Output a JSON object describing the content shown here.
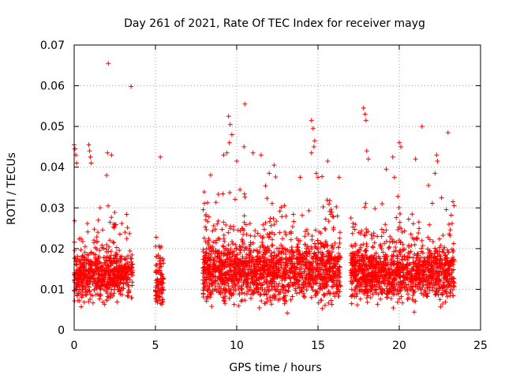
{
  "chart_data": {
    "type": "scatter",
    "title": "Day 261 of 2021, Rate Of TEC Index for receiver mayg",
    "xlabel": "GPS time / hours",
    "ylabel": "ROTI / TECUs",
    "xlim": [
      0,
      25
    ],
    "ylim": [
      0,
      0.07
    ],
    "xticks": [
      0,
      5,
      10,
      15,
      20,
      25
    ],
    "yticks": [
      0,
      0.01,
      0.02,
      0.03,
      0.04,
      0.05,
      0.06,
      0.07
    ],
    "xtick_labels": [
      "0",
      "5",
      "10",
      "15",
      "20",
      "25"
    ],
    "ytick_labels": [
      "0",
      "0.01",
      "0.02",
      "0.03",
      "0.04",
      "0.05",
      "0.06",
      "0.07"
    ],
    "grid": true,
    "marker": "+",
    "color": "#ff0000",
    "series": [
      {
        "name": "ROTI",
        "segments": [
          {
            "start": 0.0,
            "end": 3.6,
            "median": 0.0135,
            "spread": 0.004
          },
          {
            "start": 5.0,
            "end": 5.5,
            "median": 0.012,
            "spread": 0.004
          },
          {
            "start": 7.9,
            "end": 16.4,
            "median": 0.0145,
            "spread": 0.005
          },
          {
            "start": 17.0,
            "end": 23.4,
            "median": 0.014,
            "spread": 0.0045
          }
        ],
        "points": [
          [
            0.0,
            0.0455
          ],
          [
            0.05,
            0.0445
          ],
          [
            0.1,
            0.043
          ],
          [
            0.15,
            0.041
          ],
          [
            0.9,
            0.0455
          ],
          [
            0.95,
            0.044
          ],
          [
            1.0,
            0.0425
          ],
          [
            1.05,
            0.041
          ],
          [
            2.1,
            0.0655
          ],
          [
            3.5,
            0.0598
          ],
          [
            2.3,
            0.043
          ],
          [
            2.05,
            0.0435
          ],
          [
            2.0,
            0.038
          ],
          [
            5.3,
            0.0425
          ],
          [
            9.5,
            0.0525
          ],
          [
            9.6,
            0.0505
          ],
          [
            9.7,
            0.048
          ],
          [
            9.55,
            0.046
          ],
          [
            9.4,
            0.0435
          ],
          [
            9.2,
            0.043
          ],
          [
            10.2,
            0.0345
          ],
          [
            10.5,
            0.0555
          ],
          [
            10.45,
            0.045
          ],
          [
            10.0,
            0.0415
          ],
          [
            11.0,
            0.0435
          ],
          [
            11.5,
            0.043
          ],
          [
            12.0,
            0.0385
          ],
          [
            12.3,
            0.0405
          ],
          [
            13.9,
            0.0375
          ],
          [
            14.6,
            0.0515
          ],
          [
            14.7,
            0.0495
          ],
          [
            14.8,
            0.0465
          ],
          [
            14.75,
            0.045
          ],
          [
            14.6,
            0.0435
          ],
          [
            14.9,
            0.0385
          ],
          [
            15.0,
            0.0375
          ],
          [
            15.6,
            0.0415
          ],
          [
            16.3,
            0.0375
          ],
          [
            17.8,
            0.0545
          ],
          [
            17.9,
            0.053
          ],
          [
            17.95,
            0.0515
          ],
          [
            18.0,
            0.044
          ],
          [
            18.1,
            0.042
          ],
          [
            19.6,
            0.0425
          ],
          [
            19.2,
            0.0395
          ],
          [
            19.7,
            0.0375
          ],
          [
            20.0,
            0.046
          ],
          [
            20.1,
            0.045
          ],
          [
            21.4,
            0.05
          ],
          [
            21.0,
            0.042
          ],
          [
            22.3,
            0.043
          ],
          [
            22.35,
            0.0415
          ],
          [
            22.2,
            0.0385
          ],
          [
            21.8,
            0.0355
          ],
          [
            23.0,
            0.0485
          ],
          [
            23.3,
            0.0315
          ],
          [
            22.6,
            0.0325
          ]
        ]
      }
    ]
  }
}
